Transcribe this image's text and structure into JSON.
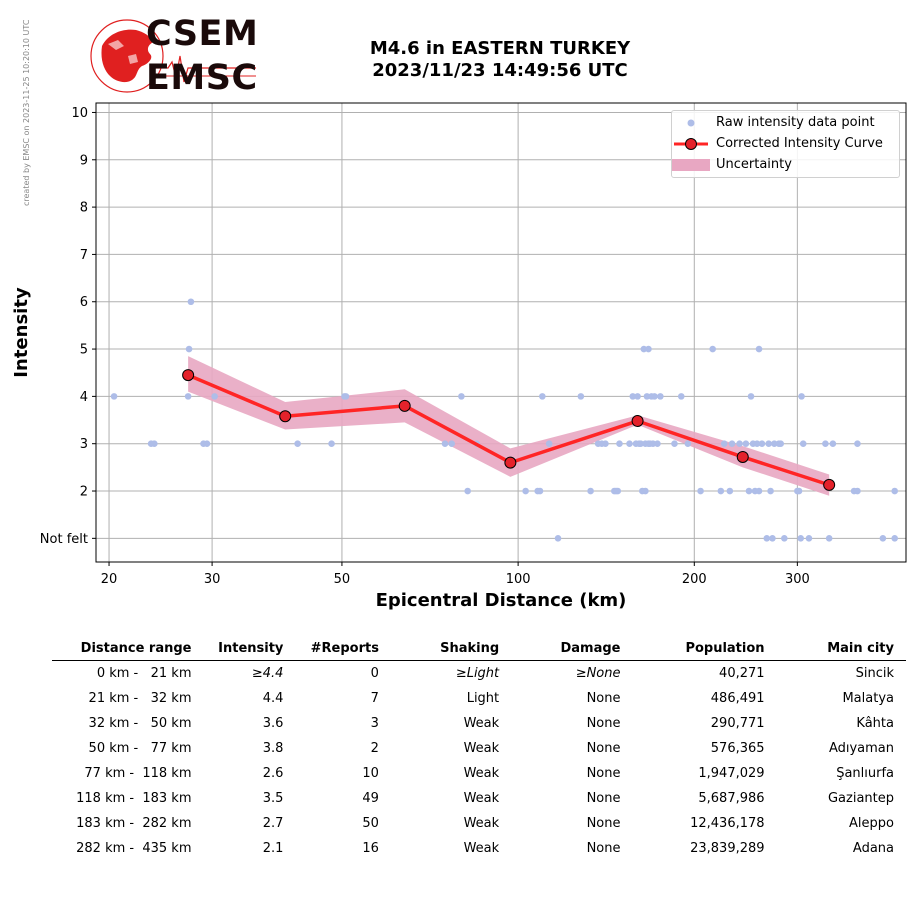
{
  "side_note": "created by EMSC on 2023-11-25 10:20:10 UTC",
  "logo": {
    "line1": "CSEM",
    "line2": "EMSC"
  },
  "title": {
    "line1": "M4.6 in EASTERN TURKEY",
    "line2": "2023/11/23 14:49:56 UTC"
  },
  "colors": {
    "raw": "#aebde8",
    "curve": "#ff2525",
    "marker": "#e4222b",
    "band": "#e8a7c2",
    "grid": "#b0b0b0"
  },
  "chart_data": {
    "type": "scatter",
    "xlabel": "Epicentral Distance (km)",
    "ylabel": "Intensity",
    "x_scale": "log",
    "xlim": [
      19,
      460
    ],
    "ylim": [
      0.5,
      10.2
    ],
    "x_ticks": [
      "20",
      "30",
      "50",
      "100",
      "200",
      "300"
    ],
    "y_ticks": [
      "Not felt",
      "2",
      "3",
      "4",
      "5",
      "6",
      "7",
      "8",
      "9",
      "10"
    ],
    "grid": true,
    "legend_position": "top-right",
    "legend": [
      "Raw intensity data point",
      "Corrected Intensity Curve",
      "Uncertainty"
    ],
    "raw_points": [
      [
        20.4,
        4
      ],
      [
        23.6,
        3
      ],
      [
        23.9,
        3
      ],
      [
        27.3,
        4
      ],
      [
        27.4,
        5
      ],
      [
        27.6,
        6
      ],
      [
        29,
        3
      ],
      [
        29.4,
        3
      ],
      [
        30.3,
        4
      ],
      [
        42,
        3
      ],
      [
        48,
        3
      ],
      [
        50.5,
        4
      ],
      [
        50.8,
        4
      ],
      [
        75,
        3
      ],
      [
        77,
        3
      ],
      [
        80,
        4
      ],
      [
        82,
        2
      ],
      [
        85,
        3
      ],
      [
        103,
        2
      ],
      [
        108,
        2
      ],
      [
        109,
        2
      ],
      [
        110,
        4
      ],
      [
        113,
        3
      ],
      [
        117,
        1
      ],
      [
        128,
        4
      ],
      [
        133,
        2
      ],
      [
        137,
        3
      ],
      [
        139,
        3
      ],
      [
        141,
        3
      ],
      [
        146,
        2
      ],
      [
        147,
        2
      ],
      [
        148,
        2
      ],
      [
        149,
        3
      ],
      [
        155,
        3
      ],
      [
        157,
        4
      ],
      [
        159,
        3
      ],
      [
        160,
        4
      ],
      [
        161,
        3
      ],
      [
        162,
        3
      ],
      [
        163,
        2
      ],
      [
        164,
        5
      ],
      [
        165,
        3
      ],
      [
        166,
        4
      ],
      [
        167,
        3
      ],
      [
        168,
        3
      ],
      [
        169,
        4
      ],
      [
        170,
        3
      ],
      [
        171,
        4
      ],
      [
        173,
        3
      ],
      [
        175,
        4
      ],
      [
        165,
        2
      ],
      [
        167,
        5
      ],
      [
        185,
        3
      ],
      [
        190,
        4
      ],
      [
        195,
        3
      ],
      [
        205,
        2
      ],
      [
        215,
        5
      ],
      [
        222,
        2
      ],
      [
        225,
        3
      ],
      [
        230,
        2
      ],
      [
        232,
        3
      ],
      [
        239,
        3
      ],
      [
        245,
        3
      ],
      [
        248,
        2
      ],
      [
        250,
        4
      ],
      [
        252,
        3
      ],
      [
        254,
        2
      ],
      [
        256,
        3
      ],
      [
        258,
        2
      ],
      [
        258,
        5
      ],
      [
        261,
        3
      ],
      [
        266,
        1
      ],
      [
        268,
        3
      ],
      [
        270,
        2
      ],
      [
        272,
        1
      ],
      [
        274,
        3
      ],
      [
        279,
        3
      ],
      [
        281,
        3
      ],
      [
        285,
        1
      ],
      [
        300,
        2
      ],
      [
        302,
        2
      ],
      [
        304,
        1
      ],
      [
        307,
        3
      ],
      [
        314,
        1
      ],
      [
        335,
        3
      ],
      [
        340,
        1
      ],
      [
        345,
        3
      ],
      [
        375,
        2
      ],
      [
        380,
        3
      ],
      [
        380,
        2
      ],
      [
        420,
        1
      ],
      [
        440,
        1
      ],
      [
        440,
        2
      ],
      [
        305,
        4
      ]
    ],
    "curve": {
      "x": [
        27.3,
        40,
        64,
        97,
        160,
        242,
        340
      ],
      "y": [
        4.45,
        3.58,
        3.8,
        2.6,
        3.48,
        2.72,
        2.13
      ],
      "upper": [
        4.85,
        3.88,
        4.15,
        2.9,
        3.6,
        2.95,
        2.35
      ],
      "lower": [
        4.1,
        3.3,
        3.45,
        2.3,
        3.4,
        2.5,
        1.9
      ]
    }
  },
  "table": {
    "headers": [
      "Distance range",
      "Intensity",
      "#Reports",
      "Shaking",
      "Damage",
      "Population",
      "Main city"
    ],
    "rows": [
      [
        "0 km -   21 km",
        "≥4.4",
        "0",
        "≥Light",
        "≥None",
        "40,271",
        "Sincik"
      ],
      [
        "21 km -   32 km",
        "4.4",
        "7",
        "Light",
        "None",
        "486,491",
        "Malatya"
      ],
      [
        "32 km -   50 km",
        "3.6",
        "3",
        "Weak",
        "None",
        "290,771",
        "Kâhta"
      ],
      [
        "50 km -   77 km",
        "3.8",
        "2",
        "Weak",
        "None",
        "576,365",
        "Adıyaman"
      ],
      [
        "77 km -  118 km",
        "2.6",
        "10",
        "Weak",
        "None",
        "1,947,029",
        "Şanlıurfa"
      ],
      [
        "118 km -  183 km",
        "3.5",
        "49",
        "Weak",
        "None",
        "5,687,986",
        "Gaziantep"
      ],
      [
        "183 km -  282 km",
        "2.7",
        "50",
        "Weak",
        "None",
        "12,436,178",
        "Aleppo"
      ],
      [
        "282 km -  435 km",
        "2.1",
        "16",
        "Weak",
        "None",
        "23,839,289",
        "Adana"
      ]
    ]
  }
}
